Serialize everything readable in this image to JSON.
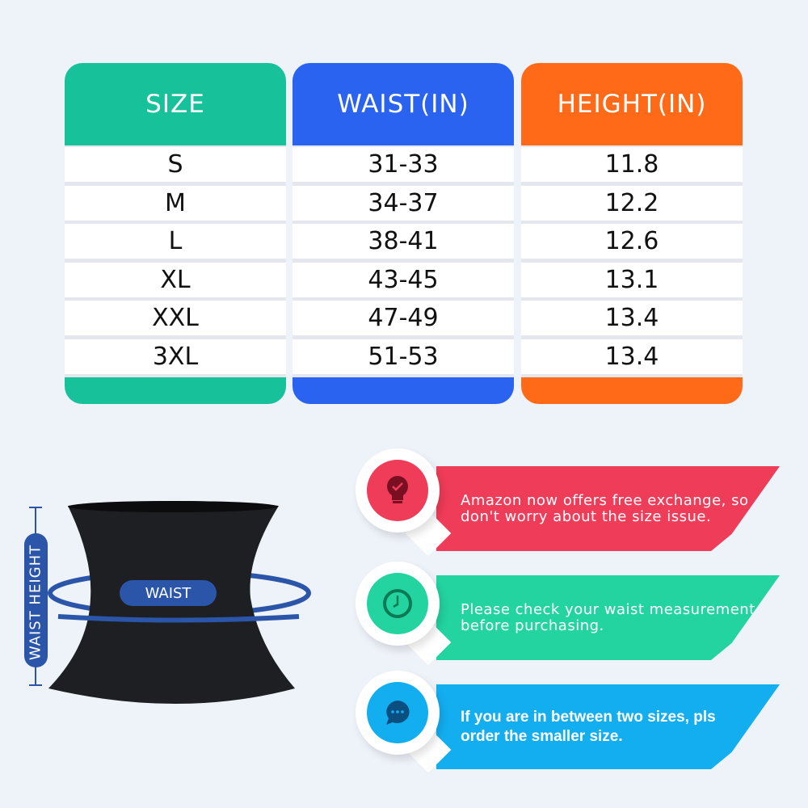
{
  "table": {
    "columns": [
      {
        "header": "SIZE",
        "color": "#17c29a",
        "values": [
          "S",
          "M",
          "L",
          "XL",
          "XXL",
          "3XL"
        ]
      },
      {
        "header": "WAIST(IN)",
        "color": "#2a63f0",
        "values": [
          "31-33",
          "34-37",
          "38-41",
          "43-45",
          "47-49",
          "51-53"
        ]
      },
      {
        "header": "HEIGHT(IN)",
        "color": "#ff6a18",
        "values": [
          "11.8",
          "12.2",
          "12.6",
          "13.1",
          "13.4",
          "13.4"
        ]
      }
    ]
  },
  "diagram": {
    "waist_label": "WAIST",
    "height_label": "WAIST HEIGHT",
    "accent": "#2a55a8"
  },
  "tips": [
    {
      "icon": "lightbulb-check-icon",
      "color": "#ef3c58",
      "text": "Amazon now offers free exchange, so don't worry about the size issue."
    },
    {
      "icon": "clock-icon",
      "color": "#23d4a0",
      "text": "Please check your waist measurement before purchasing."
    },
    {
      "icon": "chat-bubble-icon",
      "color": "#13aef0",
      "text": "If you are in between two sizes, pls order the smaller size."
    }
  ]
}
